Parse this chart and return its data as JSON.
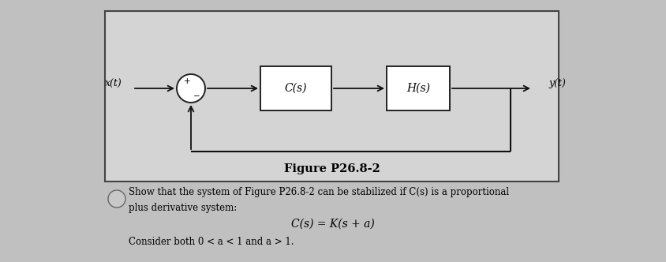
{
  "bg_color": "#c0c0c0",
  "diagram_bg": "#d8d8d8",
  "figure_label": "Figure P26.8-2",
  "text_line1": "Show that the system of Figure P26.8-2 can be stabilized if C(s) is a proportional",
  "text_line2": "plus derivative system:",
  "text_eq": "C(s) = K(s + a)",
  "text_line3": "Consider both 0 < a < 1 and a > 1.",
  "label_xt": "x(t)",
  "label_yt": "y(t)",
  "label_Cs": "C(s)",
  "label_Hs": "H(s)"
}
